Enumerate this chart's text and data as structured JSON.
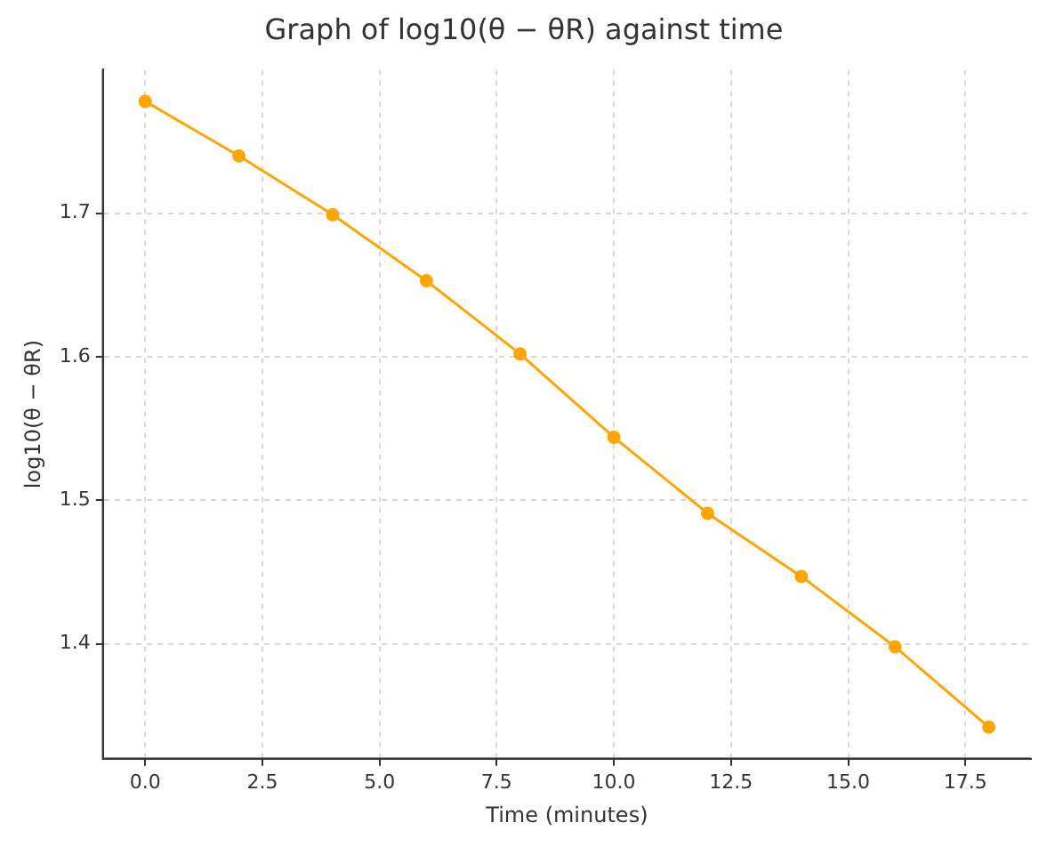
{
  "chart_data": {
    "type": "line",
    "title": "Graph of log10(θ − θR) against time",
    "xlabel": "Time (minutes)",
    "ylabel": "log10(θ − θR)",
    "x": [
      0,
      2,
      4,
      6,
      8,
      10,
      12,
      14,
      16,
      18
    ],
    "series": [
      {
        "color": "#ffa500",
        "values": [
          1.778,
          1.74,
          1.699,
          1.653,
          1.602,
          1.544,
          1.491,
          1.447,
          1.398,
          1.342
        ]
      }
    ],
    "xlim": [
      -0.9,
      18.9
    ],
    "xticks": [
      {
        "value": 0,
        "label": "0.0"
      },
      {
        "value": 2.5,
        "label": "2.5"
      },
      {
        "value": 5,
        "label": "5.0"
      },
      {
        "value": 7.5,
        "label": "7.5"
      },
      {
        "value": 10,
        "label": "10.0"
      },
      {
        "value": 12.5,
        "label": "12.5"
      },
      {
        "value": 15,
        "label": "15.0"
      },
      {
        "value": 17.5,
        "label": "17.5"
      }
    ],
    "ylim": [
      1.32,
      1.8
    ],
    "yticks": [
      {
        "value": 1.4,
        "label": "1.4"
      },
      {
        "value": 1.5,
        "label": "1.5"
      },
      {
        "value": 1.6,
        "label": "1.6"
      },
      {
        "value": 1.7,
        "label": "1.7"
      }
    ],
    "grid": true,
    "marker": "circle",
    "line_style": "solid",
    "legend": false
  }
}
